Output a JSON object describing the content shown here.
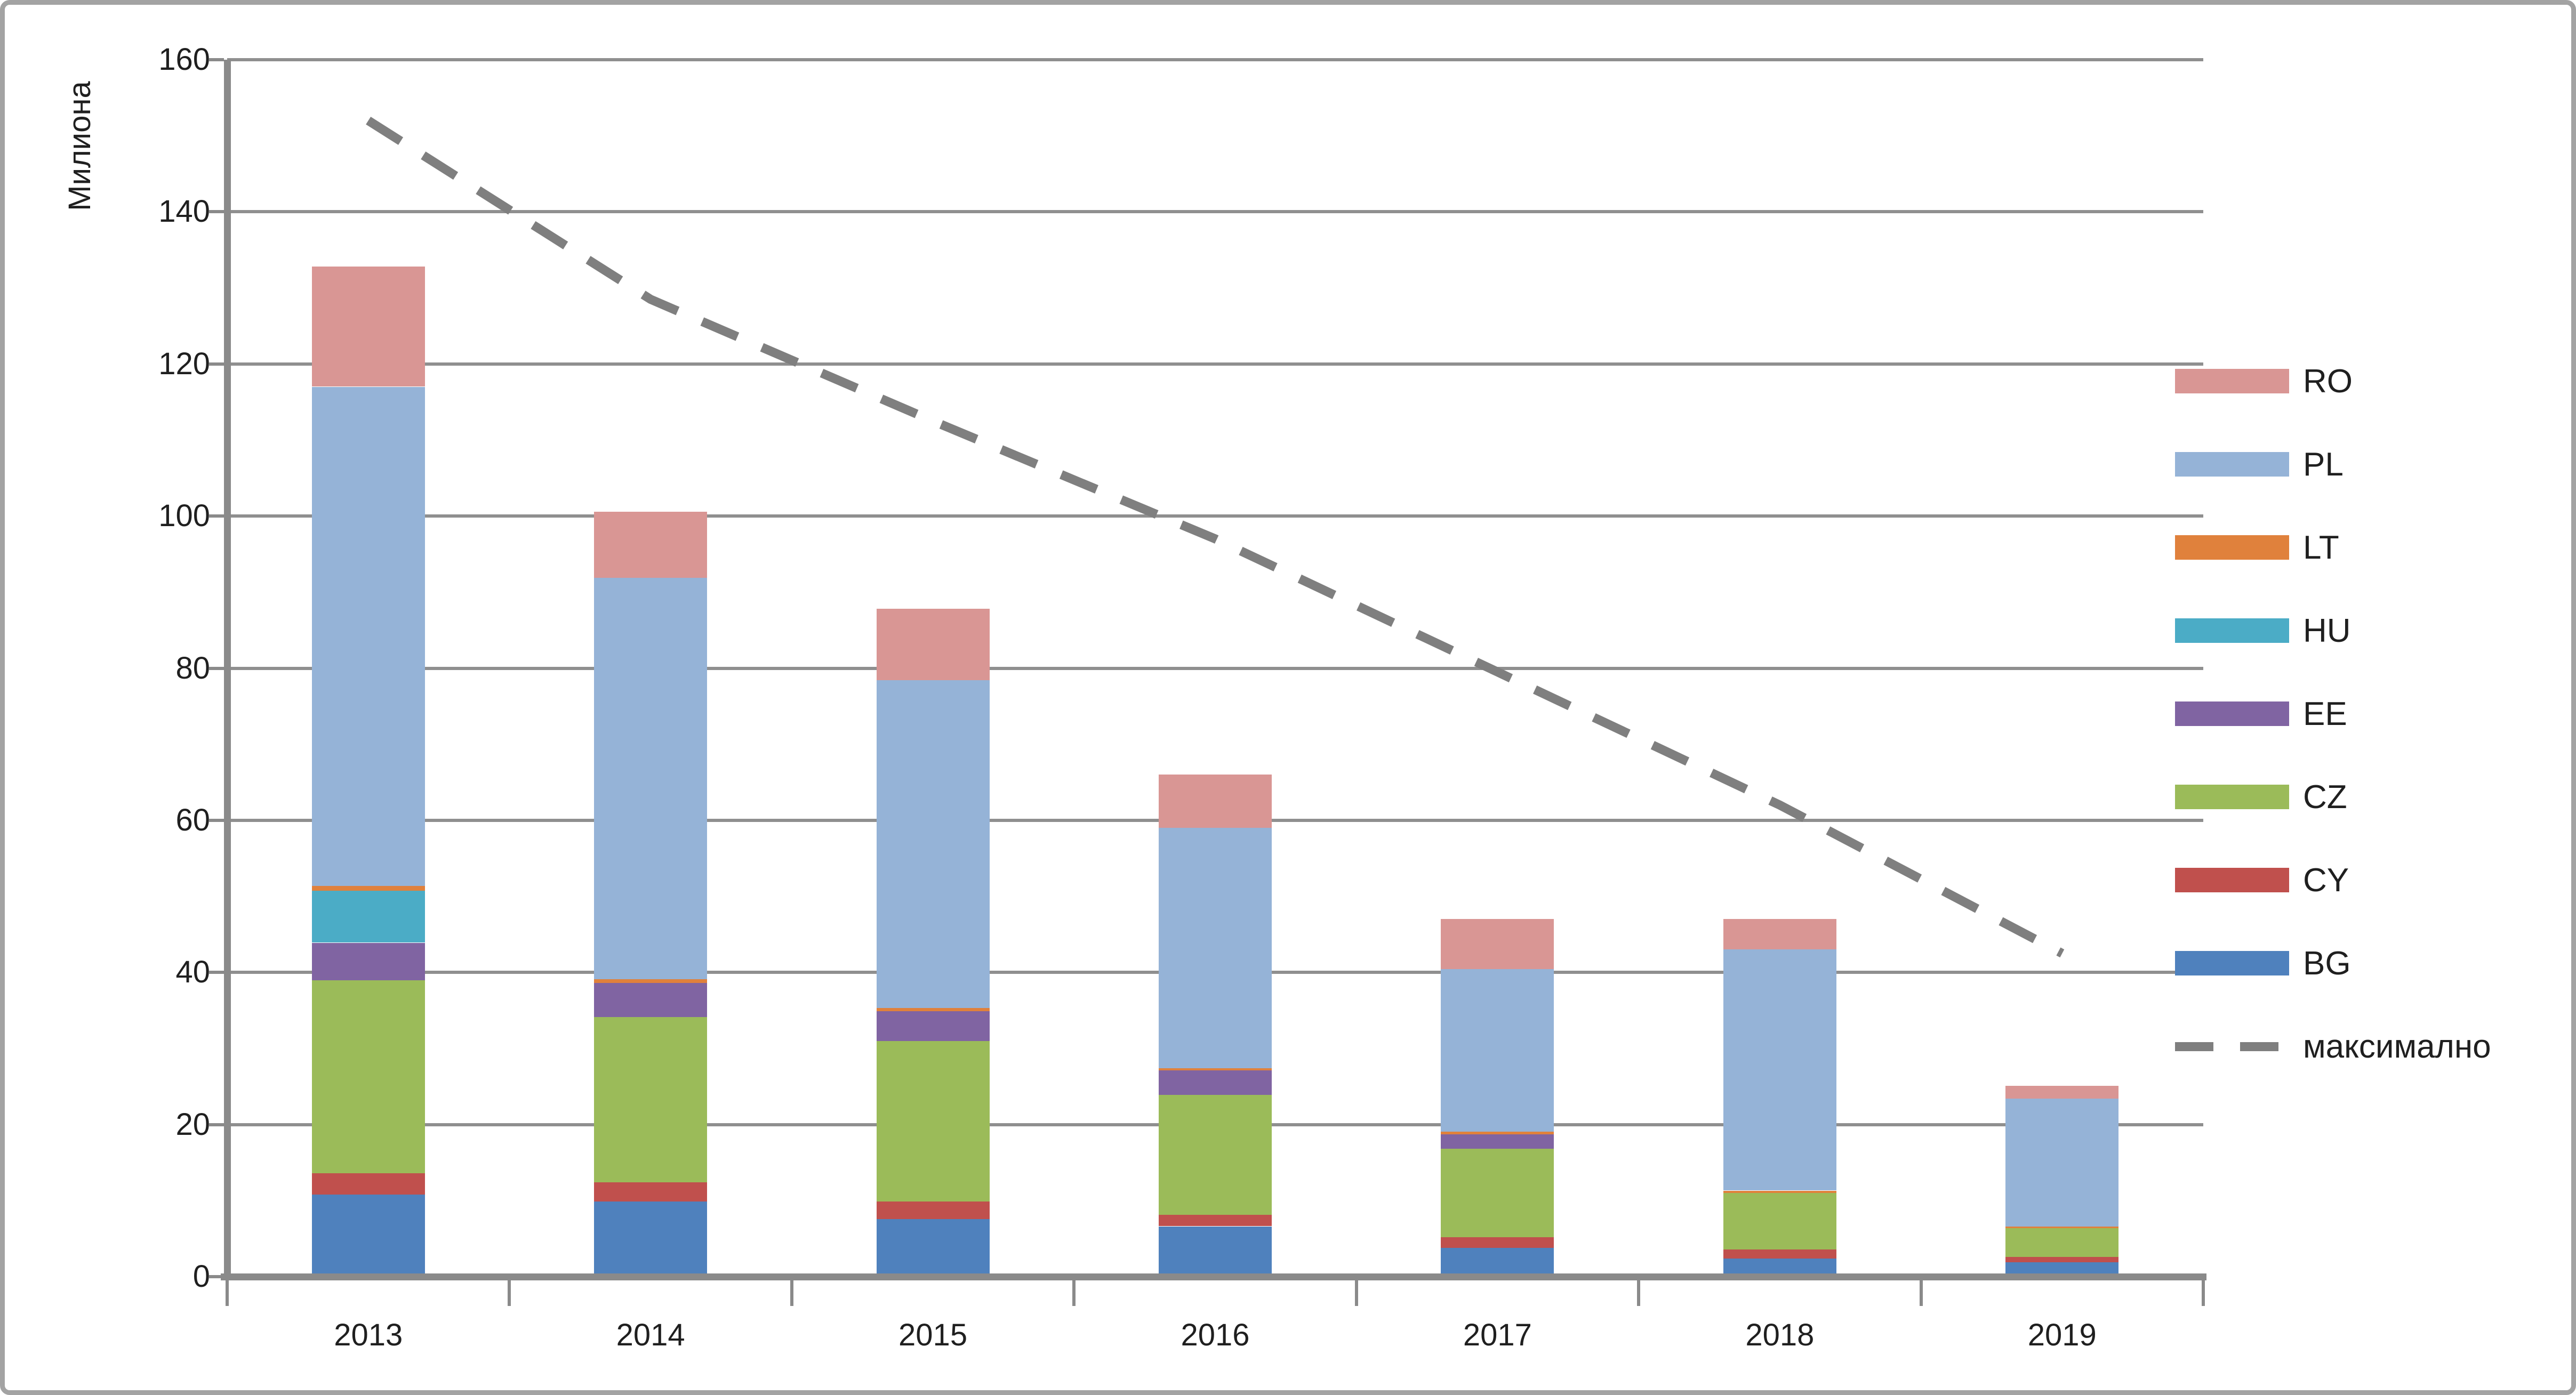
{
  "chart_data": {
    "type": "bar",
    "stacked": true,
    "title": "",
    "ylabel": "Милиона",
    "xlabel": "",
    "grid": true,
    "legend_position": "right",
    "categories": [
      "2013",
      "2014",
      "2015",
      "2016",
      "2017",
      "2018",
      "2019"
    ],
    "series": [
      {
        "name": "BG",
        "color": "#4F81BD",
        "values": [
          10.8,
          9.9,
          7.6,
          6.6,
          3.8,
          2.4,
          1.9
        ]
      },
      {
        "name": "CY",
        "color": "#C0504D",
        "values": [
          2.8,
          2.5,
          2.3,
          1.5,
          1.4,
          1.2,
          0.7
        ]
      },
      {
        "name": "CZ",
        "color": "#9BBB59",
        "values": [
          25.4,
          21.7,
          21.1,
          15.8,
          11.6,
          7.4,
          3.8
        ]
      },
      {
        "name": "EE",
        "color": "#8064A2",
        "values": [
          4.9,
          4.5,
          3.9,
          3.2,
          1.9,
          0,
          0
        ]
      },
      {
        "name": "HU",
        "color": "#4BACC6",
        "values": [
          6.9,
          0,
          0,
          0,
          0,
          0,
          0
        ]
      },
      {
        "name": "LT",
        "color": "#E0813C",
        "values": [
          0.6,
          0.5,
          0.4,
          0.3,
          0.35,
          0.3,
          0.2
        ]
      },
      {
        "name": "PL",
        "color": "#95B3D7",
        "values": [
          65.6,
          52.8,
          43.1,
          31.6,
          21.4,
          31.7,
          16.8
        ]
      },
      {
        "name": "RO",
        "color": "#D99694",
        "values": [
          15.8,
          8.7,
          9.4,
          7.0,
          6.6,
          4.0,
          1.7
        ]
      }
    ],
    "line_series": {
      "name": "максимално",
      "color": "#7F7F7F",
      "style": "dashed",
      "values": [
        152,
        128.5,
        112.5,
        97,
        79.5,
        62,
        42.5
      ]
    },
    "y_axis": {
      "min": 0,
      "max": 160,
      "step": 20,
      "ticks": [
        0,
        20,
        40,
        60,
        80,
        100,
        120,
        140,
        160
      ]
    },
    "legend": [
      {
        "label": "RO",
        "color": "#D99694",
        "kind": "box"
      },
      {
        "label": "PL",
        "color": "#95B3D7",
        "kind": "box"
      },
      {
        "label": "LT",
        "color": "#E0813C",
        "kind": "box"
      },
      {
        "label": "HU",
        "color": "#4BACC6",
        "kind": "box"
      },
      {
        "label": "EE",
        "color": "#8064A2",
        "kind": "box"
      },
      {
        "label": "CZ",
        "color": "#9BBB59",
        "kind": "box"
      },
      {
        "label": "CY",
        "color": "#C0504D",
        "kind": "box"
      },
      {
        "label": "BG",
        "color": "#4F81BD",
        "kind": "box"
      },
      {
        "label": "максимално",
        "color": "#7F7F7F",
        "kind": "dash"
      }
    ]
  }
}
